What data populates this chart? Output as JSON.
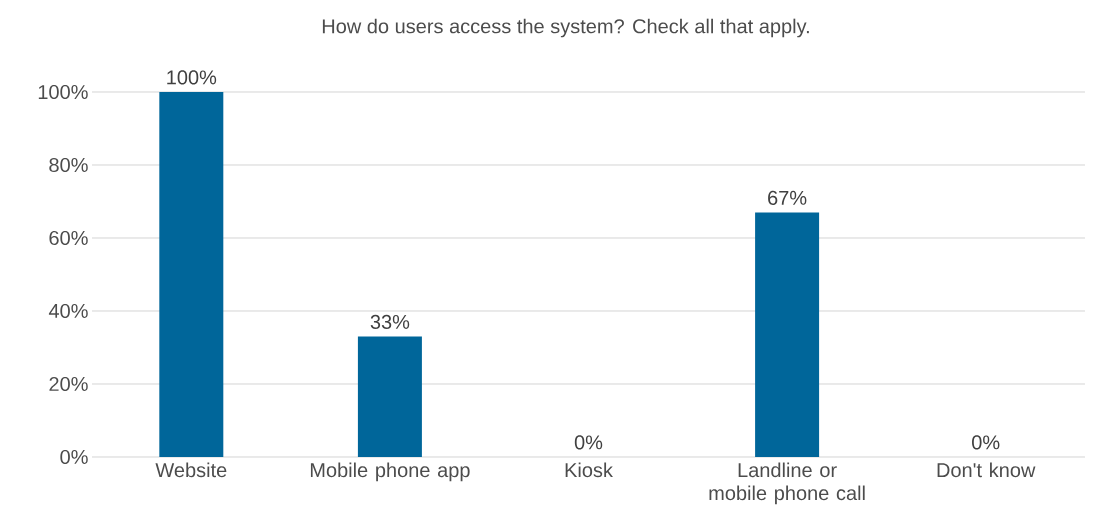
{
  "chart_data": {
    "type": "bar",
    "title": "How do users access the system? Check all that apply.",
    "categories": [
      "Website",
      "Mobile phone app",
      "Kiosk",
      "Landline or mobile phone call",
      "Don't know"
    ],
    "values": [
      100,
      33,
      0,
      67,
      0
    ],
    "value_labels": [
      "100%",
      "33%",
      "0%",
      "67%",
      "0%"
    ],
    "color": "#00669a",
    "ylim": [
      0,
      100
    ],
    "yticks": [
      {
        "value": 0,
        "label": "0%"
      },
      {
        "value": 20,
        "label": "20%"
      },
      {
        "value": 40,
        "label": "40%"
      },
      {
        "value": 60,
        "label": "60%"
      },
      {
        "value": 80,
        "label": "80%"
      },
      {
        "value": 100,
        "label": "100%"
      }
    ],
    "grid": "y"
  }
}
